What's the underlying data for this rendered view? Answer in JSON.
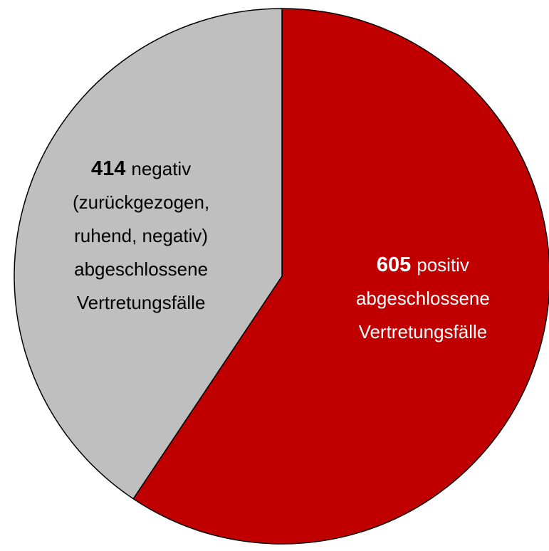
{
  "chart_data": {
    "type": "pie",
    "categories": [
      [
        "positiv",
        "abgeschlossene",
        "Vertretungsfälle"
      ],
      [
        "negativ",
        "(zurückgezogen,",
        "ruhend, negativ)",
        "abgeschlossene",
        "Vertretungsfälle"
      ]
    ],
    "values": [
      605,
      414
    ],
    "colors": [
      "#c00000",
      "#bfbfbf"
    ],
    "label_colors": [
      "#ffffff",
      "#000000"
    ]
  }
}
